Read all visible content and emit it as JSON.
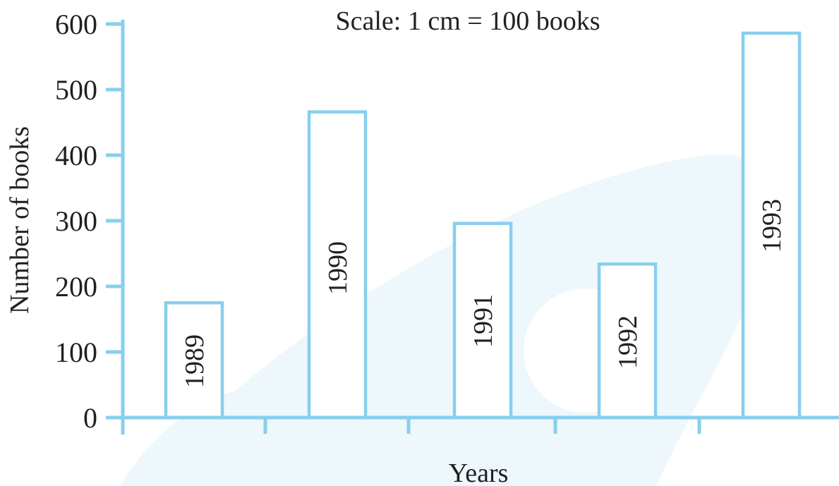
{
  "chart_data": {
    "type": "bar",
    "annotation": "Scale: 1 cm = 100 books",
    "xlabel": "Years",
    "ylabel": "Number of books",
    "categories": [
      "1989",
      "1990",
      "1991",
      "1992",
      "1993"
    ],
    "values": [
      175,
      466,
      296,
      234,
      586
    ],
    "ylim": [
      0,
      600
    ],
    "yticks": [
      "0",
      "100",
      "200",
      "300",
      "400",
      "500",
      "600"
    ],
    "grid": false,
    "bar_labels_inside": true,
    "colors": {
      "axis": "#87cfed",
      "bar_outline": "#87cfed",
      "bar_fill": "#ffffff",
      "text": "#231f20",
      "watermark": "#eef7fc"
    }
  }
}
